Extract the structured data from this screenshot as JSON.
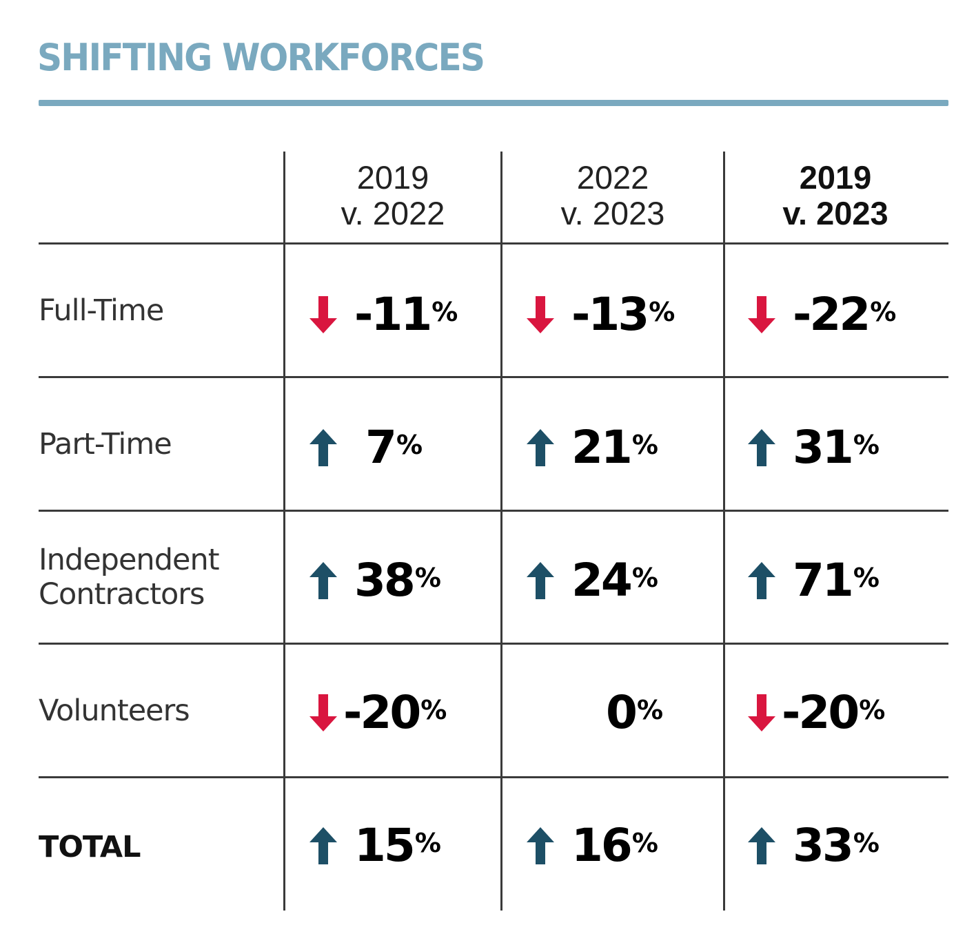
{
  "title": "SHIFTING WORKFORCES",
  "colors": {
    "title": "#7aa9bf",
    "up": "#1d4f66",
    "down": "#d9163f",
    "grid": "#3a3a3a"
  },
  "columns": [
    {
      "line1": "2019",
      "line2": "v. 2022"
    },
    {
      "line1": "2022",
      "line2": "v. 2023"
    },
    {
      "line1": "2019",
      "line2": "v. 2023"
    }
  ],
  "rows": [
    {
      "label1": "Full-Time",
      "label2": "",
      "cells": [
        {
          "value": "-11",
          "unit": "%",
          "direction": "down-arrow"
        },
        {
          "value": "-13",
          "unit": "%",
          "direction": "down-arrow"
        },
        {
          "value": "-22",
          "unit": "%",
          "direction": "down-arrow"
        }
      ]
    },
    {
      "label1": "Part-Time",
      "label2": "",
      "cells": [
        {
          "value": "7",
          "unit": "%",
          "direction": "up-arrow"
        },
        {
          "value": "21",
          "unit": "%",
          "direction": "up-arrow"
        },
        {
          "value": "31",
          "unit": "%",
          "direction": "up-arrow"
        }
      ]
    },
    {
      "label1": "Independent",
      "label2": "Contractors",
      "cells": [
        {
          "value": "38",
          "unit": "%",
          "direction": "up-arrow"
        },
        {
          "value": "24",
          "unit": "%",
          "direction": "up-arrow"
        },
        {
          "value": "71",
          "unit": "%",
          "direction": "up-arrow"
        }
      ]
    },
    {
      "label1": "Volunteers",
      "label2": "",
      "cells": [
        {
          "value": "-20",
          "unit": "%",
          "direction": "down-arrow"
        },
        {
          "value": "0",
          "unit": "%",
          "direction": "none"
        },
        {
          "value": "-20",
          "unit": "%",
          "direction": "down-arrow"
        }
      ]
    },
    {
      "label1": "TOTAL",
      "label2": "",
      "cells": [
        {
          "value": "15",
          "unit": "%",
          "direction": "up-arrow"
        },
        {
          "value": "16",
          "unit": "%",
          "direction": "up-arrow"
        },
        {
          "value": "33",
          "unit": "%",
          "direction": "up-arrow"
        }
      ]
    }
  ],
  "chart_data": {
    "type": "table",
    "title": "SHIFTING WORKFORCES",
    "categories": [
      "Full-Time",
      "Part-Time",
      "Independent Contractors",
      "Volunteers",
      "TOTAL"
    ],
    "series": [
      {
        "name": "2019 v. 2022",
        "values": [
          -11,
          7,
          38,
          -20,
          15
        ]
      },
      {
        "name": "2022 v. 2023",
        "values": [
          -13,
          21,
          24,
          0,
          16
        ]
      },
      {
        "name": "2019 v. 2023",
        "values": [
          -22,
          31,
          71,
          -20,
          33
        ]
      }
    ],
    "unit": "%",
    "indicators": {
      "up": "up-arrow (dark teal)",
      "down": "down-arrow (red)",
      "zero": "none"
    }
  }
}
